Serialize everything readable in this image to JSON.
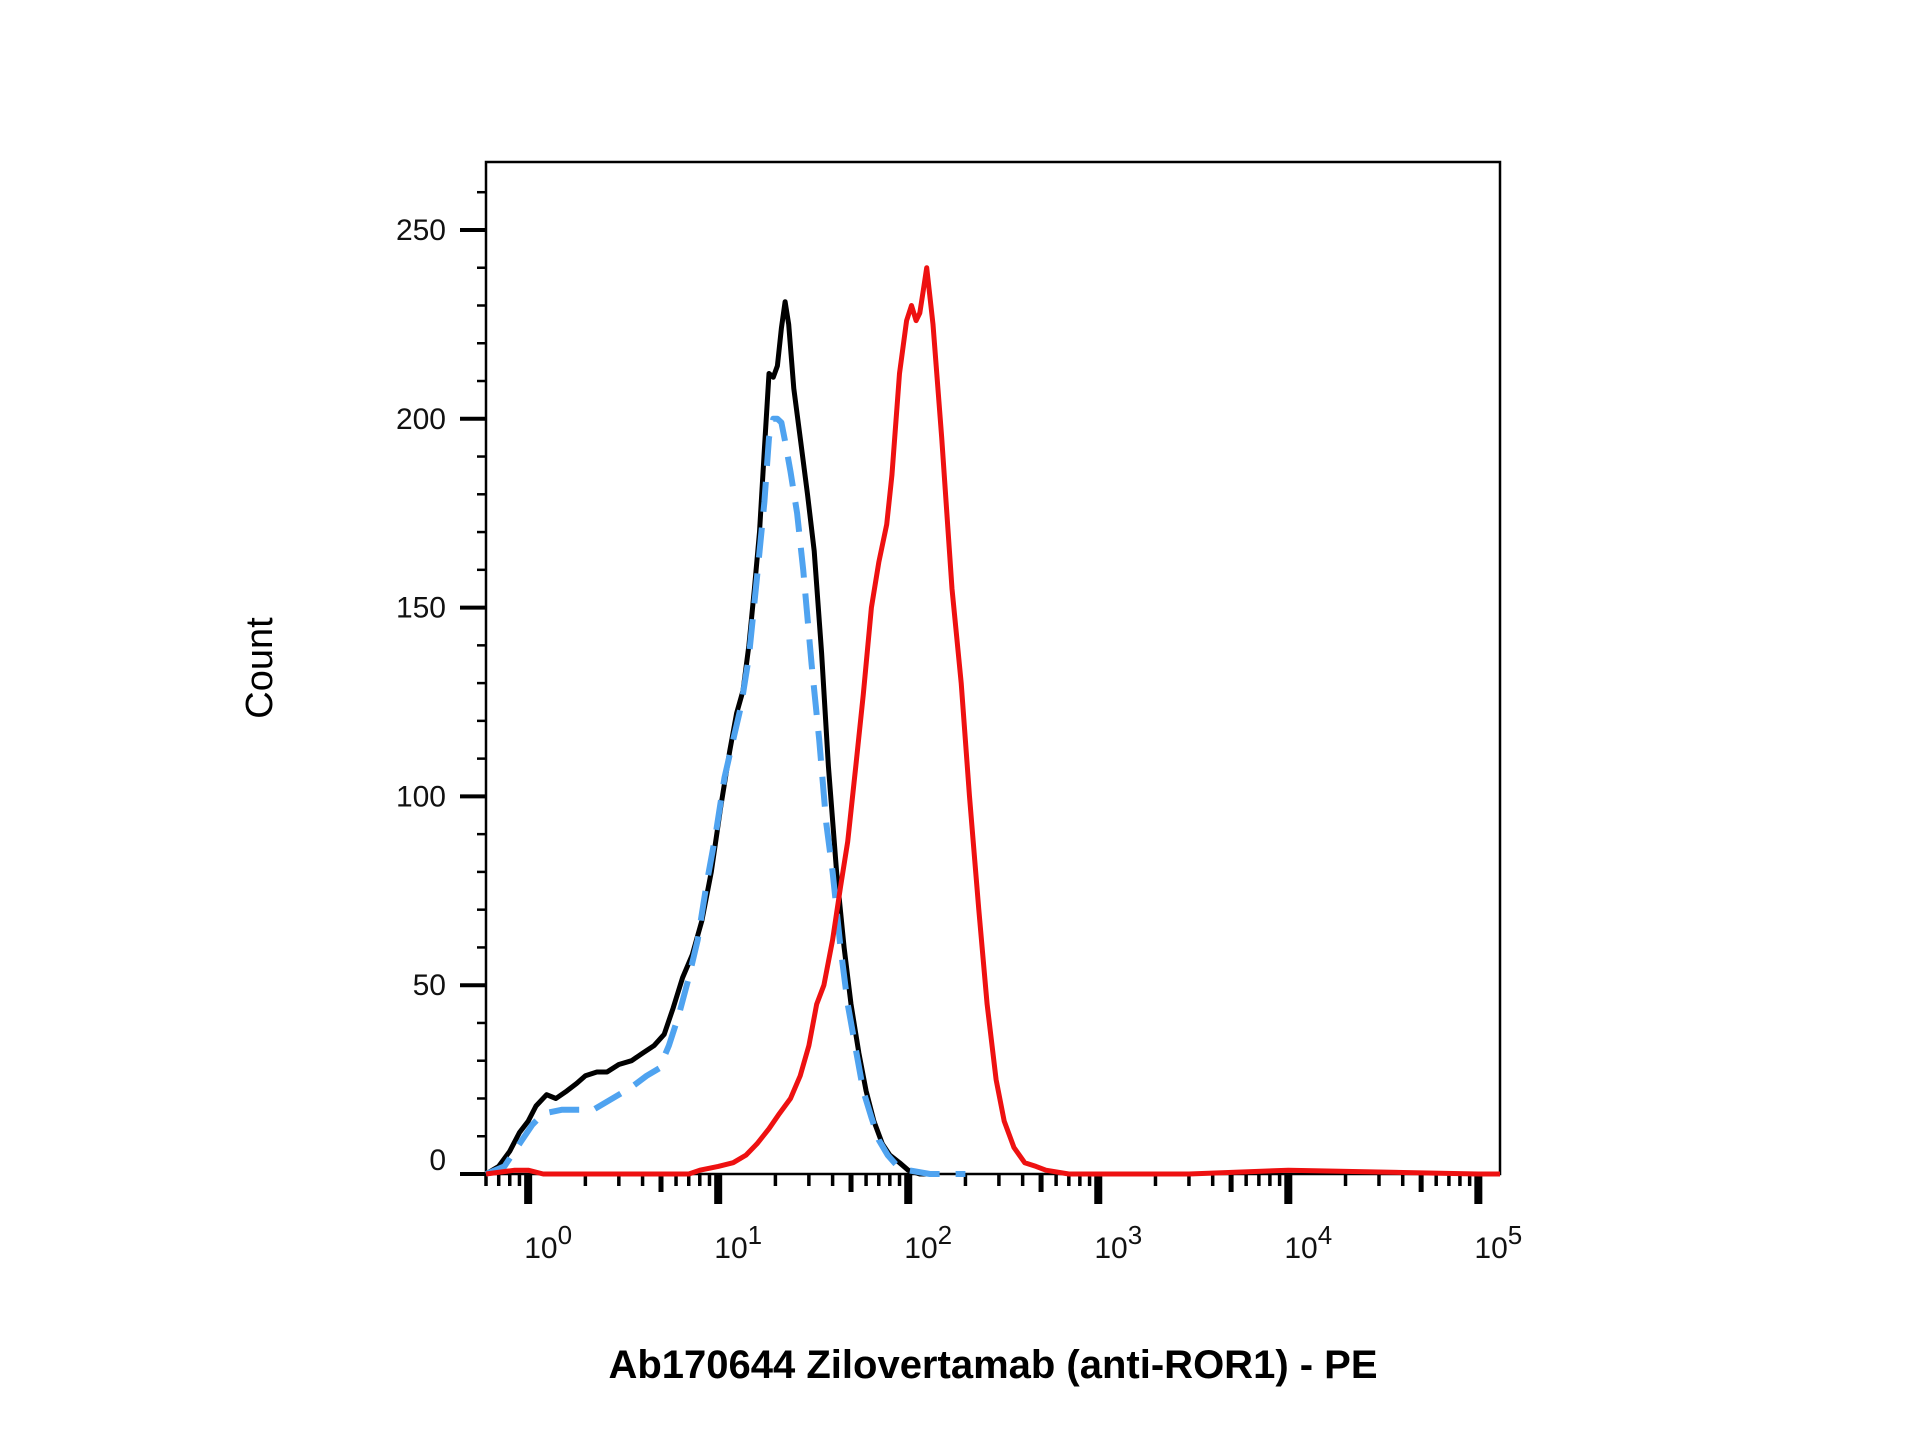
{
  "chart_data": {
    "type": "line",
    "title": "",
    "xlabel": "Ab170644 Zilovertamab (anti-ROR1) - PE",
    "ylabel": "Count",
    "x_scale": "log",
    "xlim": [
      0.6,
      130000
    ],
    "ylim": [
      0,
      268
    ],
    "x_ticks": [
      {
        "value": 1,
        "base": "10",
        "exp": "0"
      },
      {
        "value": 10,
        "base": "10",
        "exp": "1"
      },
      {
        "value": 100,
        "base": "10",
        "exp": "2"
      },
      {
        "value": 1000,
        "base": "10",
        "exp": "3"
      },
      {
        "value": 10000,
        "base": "10",
        "exp": "4"
      },
      {
        "value": 100000,
        "base": "10",
        "exp": "5"
      }
    ],
    "y_ticks": [
      {
        "value": 0,
        "label": "0"
      },
      {
        "value": 50,
        "label": "50"
      },
      {
        "value": 100,
        "label": "100"
      },
      {
        "value": 150,
        "label": "150"
      },
      {
        "value": 200,
        "label": "200"
      },
      {
        "value": 250,
        "label": "250"
      }
    ],
    "grid": false,
    "legend": "none",
    "series": [
      {
        "color": "#000000",
        "dash": "solid",
        "points": [
          [
            0.6,
            0
          ],
          [
            0.7,
            2
          ],
          [
            0.8,
            6
          ],
          [
            0.9,
            11
          ],
          [
            1.0,
            14
          ],
          [
            1.1,
            18
          ],
          [
            1.25,
            21
          ],
          [
            1.4,
            20
          ],
          [
            1.6,
            22
          ],
          [
            1.8,
            24
          ],
          [
            2.0,
            26
          ],
          [
            2.3,
            27
          ],
          [
            2.6,
            27
          ],
          [
            3.0,
            29
          ],
          [
            3.5,
            30
          ],
          [
            4.0,
            32
          ],
          [
            4.6,
            34
          ],
          [
            5.2,
            37
          ],
          [
            5.8,
            44
          ],
          [
            6.5,
            52
          ],
          [
            7.3,
            58
          ],
          [
            8.2,
            67
          ],
          [
            9.2,
            80
          ],
          [
            10.3,
            97
          ],
          [
            11.5,
            112
          ],
          [
            12.5,
            122
          ],
          [
            13.5,
            128
          ],
          [
            14.5,
            140
          ],
          [
            15.5,
            155
          ],
          [
            16.5,
            170
          ],
          [
            17.5,
            192
          ],
          [
            18.5,
            212
          ],
          [
            19.5,
            211
          ],
          [
            20.5,
            214
          ],
          [
            21.5,
            224
          ],
          [
            22.5,
            231
          ],
          [
            23.5,
            225
          ],
          [
            25,
            208
          ],
          [
            27,
            195
          ],
          [
            29.5,
            180
          ],
          [
            32,
            165
          ],
          [
            35,
            138
          ],
          [
            38,
            108
          ],
          [
            42,
            80
          ],
          [
            46,
            60
          ],
          [
            50,
            45
          ],
          [
            55,
            32
          ],
          [
            60,
            22
          ],
          [
            66,
            14
          ],
          [
            73,
            8
          ],
          [
            80,
            5
          ],
          [
            90,
            3
          ],
          [
            100,
            1
          ],
          [
            115,
            0
          ],
          [
            130,
            0
          ]
        ]
      },
      {
        "color": "#4fa3f0",
        "dash": "dashed",
        "points": [
          [
            0.6,
            0
          ],
          [
            0.75,
            2
          ],
          [
            0.9,
            8
          ],
          [
            1.05,
            13
          ],
          [
            1.2,
            16
          ],
          [
            1.5,
            17
          ],
          [
            1.9,
            17
          ],
          [
            2.2,
            17
          ],
          [
            3.5,
            23
          ],
          [
            4.2,
            26
          ],
          [
            4.9,
            28
          ],
          [
            5.5,
            34
          ],
          [
            6.2,
            42
          ],
          [
            7.0,
            52
          ],
          [
            7.8,
            62
          ],
          [
            8.7,
            77
          ],
          [
            9.7,
            90
          ],
          [
            10.8,
            105
          ],
          [
            12.0,
            115
          ],
          [
            13.2,
            124
          ],
          [
            14.5,
            137
          ],
          [
            16,
            158
          ],
          [
            17.5,
            178
          ],
          [
            18.5,
            195
          ],
          [
            19.5,
            200
          ],
          [
            20.5,
            200
          ],
          [
            21.5,
            199
          ],
          [
            22.5,
            194
          ],
          [
            24,
            186
          ],
          [
            26,
            175
          ],
          [
            28,
            160
          ],
          [
            31,
            135
          ],
          [
            34,
            115
          ],
          [
            37,
            93
          ],
          [
            40,
            80
          ],
          [
            44,
            60
          ],
          [
            48,
            45
          ],
          [
            53,
            33
          ],
          [
            58,
            22
          ],
          [
            64,
            15
          ],
          [
            70,
            9
          ],
          [
            78,
            5
          ],
          [
            88,
            2
          ],
          [
            100,
            1
          ],
          [
            130,
            0
          ],
          [
            200,
            0
          ]
        ]
      },
      {
        "color": "#ee1111",
        "dash": "solid",
        "points": [
          [
            0.6,
            0
          ],
          [
            0.85,
            1
          ],
          [
            1.0,
            1
          ],
          [
            1.2,
            0
          ],
          [
            5,
            0
          ],
          [
            7,
            0
          ],
          [
            8,
            1
          ],
          [
            10,
            2
          ],
          [
            12,
            3
          ],
          [
            14,
            5
          ],
          [
            16,
            8
          ],
          [
            18.5,
            12
          ],
          [
            21,
            16
          ],
          [
            24,
            20
          ],
          [
            27,
            26
          ],
          [
            30,
            34
          ],
          [
            33,
            45
          ],
          [
            36,
            50
          ],
          [
            40,
            62
          ],
          [
            44,
            76
          ],
          [
            48,
            88
          ],
          [
            53,
            108
          ],
          [
            58,
            127
          ],
          [
            64,
            150
          ],
          [
            70,
            162
          ],
          [
            77,
            172
          ],
          [
            82,
            185
          ],
          [
            90,
            212
          ],
          [
            98,
            226
          ],
          [
            104,
            230
          ],
          [
            110,
            226
          ],
          [
            115,
            228
          ],
          [
            120,
            234
          ],
          [
            125,
            240
          ],
          [
            135,
            225
          ],
          [
            150,
            195
          ],
          [
            170,
            155
          ],
          [
            190,
            130
          ],
          [
            210,
            100
          ],
          [
            235,
            70
          ],
          [
            260,
            45
          ],
          [
            290,
            25
          ],
          [
            320,
            14
          ],
          [
            360,
            7
          ],
          [
            410,
            3
          ],
          [
            470,
            2
          ],
          [
            530,
            1
          ],
          [
            700,
            0
          ],
          [
            3000,
            0
          ],
          [
            10000,
            1
          ],
          [
            100000,
            0
          ],
          [
            130000,
            0
          ]
        ]
      }
    ]
  }
}
